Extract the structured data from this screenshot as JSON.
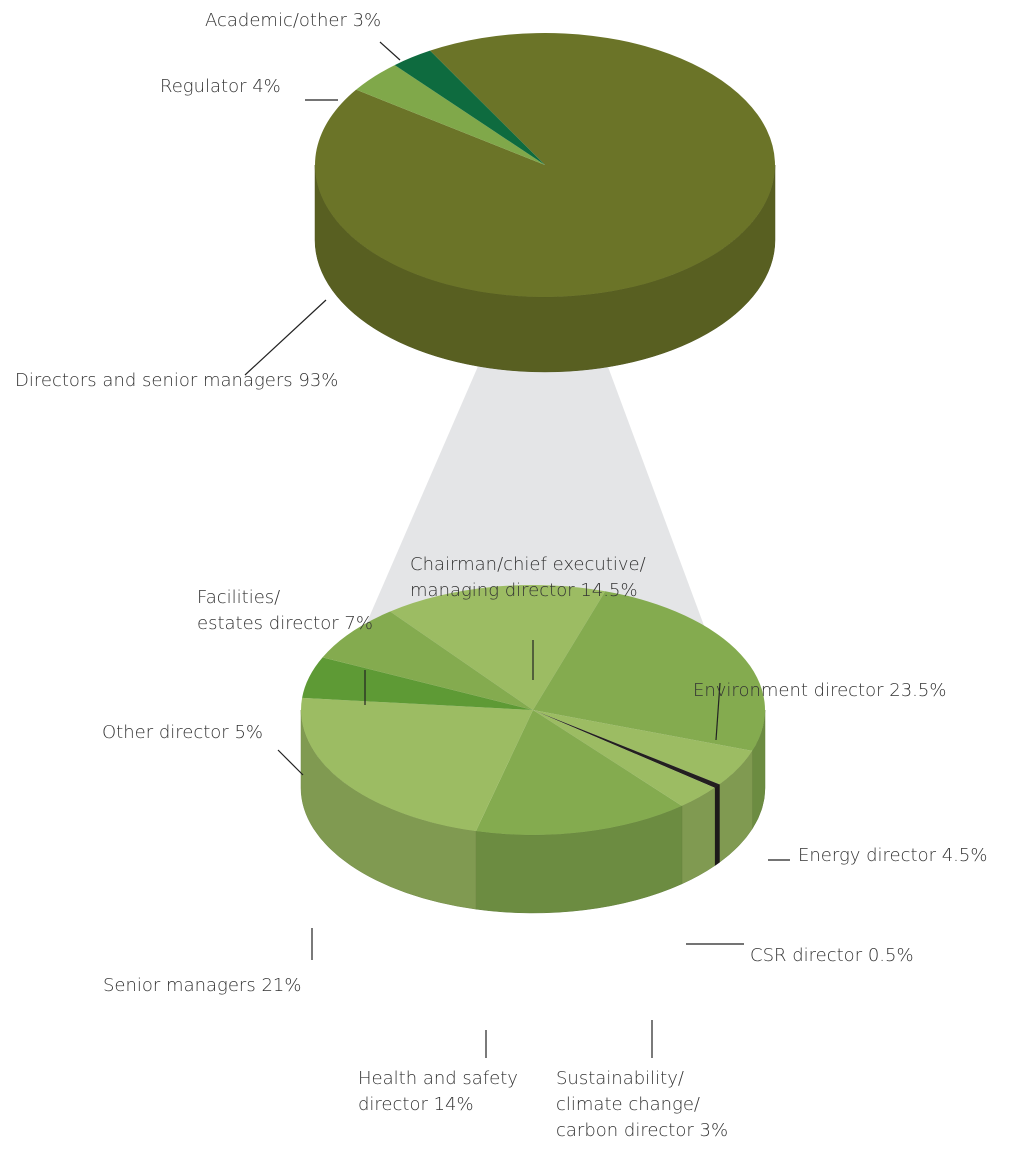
{
  "chart_data": [
    {
      "type": "pie",
      "categories": [
        "Directors and senior managers",
        "Regulator",
        "Academic/other"
      ],
      "values": [
        93,
        4,
        3
      ],
      "value_labels": [
        "93%",
        "4%",
        "3%"
      ],
      "colors": [
        "#6b7428",
        "#80a84a",
        "#0e6b3f"
      ]
    },
    {
      "type": "pie",
      "categories": [
        "Chairman/chief executive/\nmanaging director",
        "Environment director",
        "Energy director",
        "CSR director",
        "Sustainability/\nclimate change/\ncarbon director",
        "Health and safety\ndirector",
        "Senior managers",
        "Other director",
        "Facilities/\nestates director"
      ],
      "values": [
        14.5,
        23.5,
        4.5,
        0.5,
        3,
        14,
        21,
        5,
        7
      ],
      "value_labels": [
        "14.5%",
        "23.5%",
        "4.5%",
        "0.5%",
        "3%",
        "14%",
        "21%",
        "5%",
        "7%"
      ],
      "colors": [
        "#9cbc63",
        "#84ab4f",
        "#9cbc63",
        "#231f20",
        "#9cbc63",
        "#84ab4f",
        "#9cbc63",
        "#5e9a35",
        "#84ab4f"
      ]
    }
  ]
}
